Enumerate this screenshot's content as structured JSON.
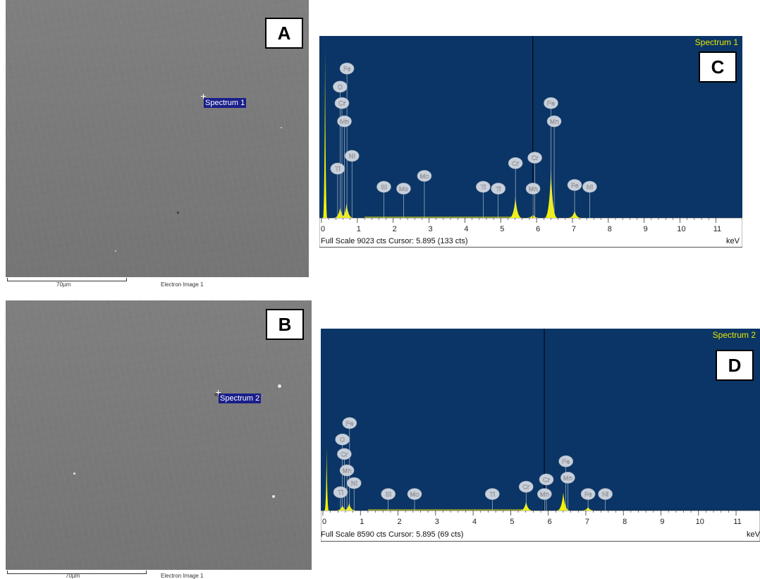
{
  "sem_images": [
    {
      "panel_letter": "A",
      "spectrum_label": "Spectrum 1",
      "scale_label": "70µm",
      "image_label": "Electron Image 1"
    },
    {
      "panel_letter": "B",
      "spectrum_label": "Spectrum 2",
      "scale_label": "70µm",
      "image_label": "Electron Image 1"
    }
  ],
  "chart_data": [
    {
      "type": "line",
      "panel_letter": "C",
      "title": "Spectrum 1",
      "xlabel": "keV",
      "xlim": [
        0,
        11.7
      ],
      "x_ticks": [
        "0",
        "1",
        "2",
        "3",
        "4",
        "5",
        "6",
        "7",
        "8",
        "9",
        "10",
        "11"
      ],
      "full_scale_cts": 9023,
      "cursor_kev": 5.895,
      "cursor_cts": 133,
      "footer_text": "Full Scale 9023 cts Cursor: 5.895  (133 cts)",
      "peaks": [
        {
          "kev": 0.1,
          "height": 0.93
        },
        {
          "kev": 0.52,
          "height": 0.06
        },
        {
          "kev": 0.7,
          "height": 0.08
        },
        {
          "kev": 5.41,
          "height": 0.12
        },
        {
          "kev": 5.9,
          "height": 0.02
        },
        {
          "kev": 6.4,
          "height": 0.27
        },
        {
          "kev": 7.06,
          "height": 0.04
        }
      ],
      "element_labels": [
        {
          "text": "Fe",
          "kev": 0.71,
          "level": 0.79
        },
        {
          "text": "O",
          "kev": 0.52,
          "level": 0.69
        },
        {
          "text": "Cr",
          "kev": 0.57,
          "level": 0.6
        },
        {
          "text": "Mn",
          "kev": 0.64,
          "level": 0.5
        },
        {
          "text": "Ni",
          "kev": 0.85,
          "level": 0.31
        },
        {
          "text": "Ti",
          "kev": 0.45,
          "level": 0.24
        },
        {
          "text": "Si",
          "kev": 1.74,
          "level": 0.14
        },
        {
          "text": "Mo",
          "kev": 2.29,
          "level": 0.13
        },
        {
          "text": "Mo",
          "kev": 2.87,
          "level": 0.2
        },
        {
          "text": "Ti",
          "kev": 4.51,
          "level": 0.14
        },
        {
          "text": "Ti",
          "kev": 4.93,
          "level": 0.13
        },
        {
          "text": "Cr",
          "kev": 5.41,
          "level": 0.27
        },
        {
          "text": "Cr",
          "kev": 5.95,
          "level": 0.3
        },
        {
          "text": "Mn",
          "kev": 5.9,
          "level": 0.13
        },
        {
          "text": "Fe",
          "kev": 6.4,
          "level": 0.6
        },
        {
          "text": "Mn",
          "kev": 6.49,
          "level": 0.5
        },
        {
          "text": "Fe",
          "kev": 7.06,
          "level": 0.15
        },
        {
          "text": "Ni",
          "kev": 7.48,
          "level": 0.14
        }
      ]
    },
    {
      "type": "line",
      "panel_letter": "D",
      "title": "Spectrum 2",
      "xlabel": "keV",
      "xlim": [
        0,
        11.6
      ],
      "x_ticks": [
        "0",
        "1",
        "2",
        "3",
        "4",
        "5",
        "6",
        "7",
        "8",
        "9",
        "10",
        "11"
      ],
      "full_scale_cts": 8590,
      "cursor_kev": 5.895,
      "cursor_cts": 69,
      "footer_text": "Full Scale 8590 cts Cursor: 5.895  (69 cts)",
      "peaks": [
        {
          "kev": 0.1,
          "height": 0.35
        },
        {
          "kev": 0.52,
          "height": 0.03
        },
        {
          "kev": 0.7,
          "height": 0.04
        },
        {
          "kev": 5.41,
          "height": 0.05
        },
        {
          "kev": 6.4,
          "height": 0.1
        },
        {
          "kev": 7.06,
          "height": 0.02
        }
      ],
      "element_labels": [
        {
          "text": "Fe",
          "kev": 0.71,
          "level": 0.45
        },
        {
          "text": "O",
          "kev": 0.52,
          "level": 0.36
        },
        {
          "text": "Cr",
          "kev": 0.57,
          "level": 0.28
        },
        {
          "text": "Mn",
          "kev": 0.64,
          "level": 0.19
        },
        {
          "text": "Ni",
          "kev": 0.83,
          "level": 0.12
        },
        {
          "text": "Ti",
          "kev": 0.47,
          "level": 0.07
        },
        {
          "text": "Si",
          "kev": 1.74,
          "level": 0.06
        },
        {
          "text": "Mo",
          "kev": 2.44,
          "level": 0.06
        },
        {
          "text": "Ti",
          "kev": 4.51,
          "level": 0.06
        },
        {
          "text": "Cr",
          "kev": 5.41,
          "level": 0.1
        },
        {
          "text": "Cr",
          "kev": 5.95,
          "level": 0.14
        },
        {
          "text": "Mn",
          "kev": 5.9,
          "level": 0.06
        },
        {
          "text": "Fe",
          "kev": 6.47,
          "level": 0.24
        },
        {
          "text": "Mn",
          "kev": 6.52,
          "level": 0.15
        },
        {
          "text": "Fe",
          "kev": 7.06,
          "level": 0.06
        },
        {
          "text": "Ni",
          "kev": 7.52,
          "level": 0.06
        }
      ]
    }
  ],
  "colors": {
    "plot_bg": "#0a3566",
    "peak_fill": "#f2f207",
    "label_bubble": "#c8d0dc",
    "title_text": "#e8e800"
  }
}
